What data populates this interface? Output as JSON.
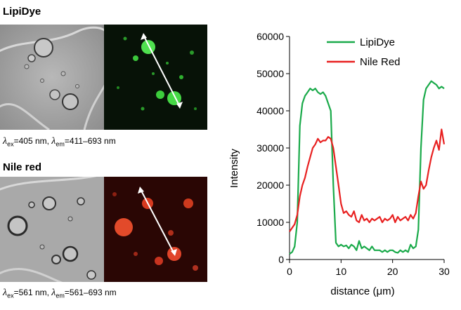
{
  "panels": [
    {
      "title": "LipiDye",
      "caption": {
        "lambda": "λ",
        "ex_sub": "ex",
        "ex_value": "=405 nm, ",
        "em_sub": "em",
        "em_value": "=411–693 nm"
      },
      "fluor_color": "#2ecc2e"
    },
    {
      "title": "Nile red",
      "caption": {
        "lambda": "λ",
        "ex_sub": "ex",
        "ex_value": "=561 nm, ",
        "em_sub": "em",
        "em_value": "=561–693 nm"
      },
      "fluor_color": "#e8341c"
    }
  ],
  "chart_data": {
    "type": "line",
    "xlabel": "distance (μm)",
    "ylabel": "Intensity",
    "xlim": [
      0,
      30
    ],
    "ylim": [
      0,
      60000
    ],
    "xticks": [
      "0",
      "10",
      "20",
      "30"
    ],
    "yticks": [
      "0",
      "10000",
      "20000",
      "30000",
      "40000",
      "50000",
      "60000"
    ],
    "legend_position": "top-right",
    "grid": false,
    "series": [
      {
        "name": "LipiDye",
        "color": "#1aaa4a",
        "x": [
          0,
          0.5,
          1,
          1.5,
          2,
          2.5,
          3,
          3.5,
          4,
          4.5,
          5,
          5.5,
          6,
          6.5,
          7,
          7.5,
          8,
          8.5,
          9,
          9.5,
          10,
          10.5,
          11,
          11.5,
          12,
          12.5,
          13,
          13.5,
          14,
          14.5,
          15,
          15.5,
          16,
          16.5,
          17,
          17.5,
          18,
          18.5,
          19,
          19.5,
          20,
          20.5,
          21,
          21.5,
          22,
          22.5,
          23,
          23.5,
          24,
          24.5,
          25,
          25.5,
          26,
          26.5,
          27,
          27.5,
          28,
          28.5,
          29,
          29.5,
          30
        ],
        "y": [
          1500,
          2000,
          3500,
          10000,
          36000,
          42000,
          44000,
          45000,
          46000,
          45500,
          46000,
          45000,
          44500,
          45000,
          44000,
          42000,
          40000,
          20000,
          4500,
          3500,
          4000,
          3500,
          3800,
          3000,
          4000,
          3500,
          2500,
          5000,
          3000,
          3500,
          3000,
          2500,
          3500,
          2500,
          2500,
          2500,
          2000,
          2500,
          2000,
          2500,
          2500,
          2000,
          1800,
          2500,
          2000,
          2500,
          2000,
          4000,
          3000,
          3500,
          8000,
          30000,
          43000,
          46000,
          47000,
          48000,
          47500,
          47000,
          46000,
          46500,
          46000
        ]
      },
      {
        "name": "Nile Red",
        "color": "#e82020",
        "x": [
          0,
          0.5,
          1,
          1.5,
          2,
          2.5,
          3,
          3.5,
          4,
          4.5,
          5,
          5.5,
          6,
          6.5,
          7,
          7.5,
          8,
          8.5,
          9,
          9.5,
          10,
          10.5,
          11,
          11.5,
          12,
          12.5,
          13,
          13.5,
          14,
          14.5,
          15,
          15.5,
          16,
          16.5,
          17,
          17.5,
          18,
          18.5,
          19,
          19.5,
          20,
          20.5,
          21,
          21.5,
          22,
          22.5,
          23,
          23.5,
          24,
          24.5,
          25,
          25.5,
          26,
          26.5,
          27,
          27.5,
          28,
          28.5,
          29,
          29.5,
          30
        ],
        "y": [
          7500,
          8500,
          9500,
          12000,
          17000,
          20000,
          22000,
          25000,
          27500,
          30000,
          31000,
          32500,
          31500,
          32000,
          32000,
          33000,
          32500,
          30000,
          25000,
          20000,
          15000,
          12500,
          13000,
          12000,
          11500,
          13000,
          10500,
          10000,
          12000,
          10500,
          11000,
          10000,
          11000,
          10500,
          11000,
          11500,
          10000,
          11000,
          10500,
          11000,
          12000,
          10000,
          11500,
          10500,
          11000,
          11500,
          10500,
          12000,
          11000,
          12500,
          17000,
          21000,
          19000,
          20000,
          24000,
          27500,
          30000,
          32000,
          29500,
          35000,
          31000
        ]
      }
    ]
  }
}
